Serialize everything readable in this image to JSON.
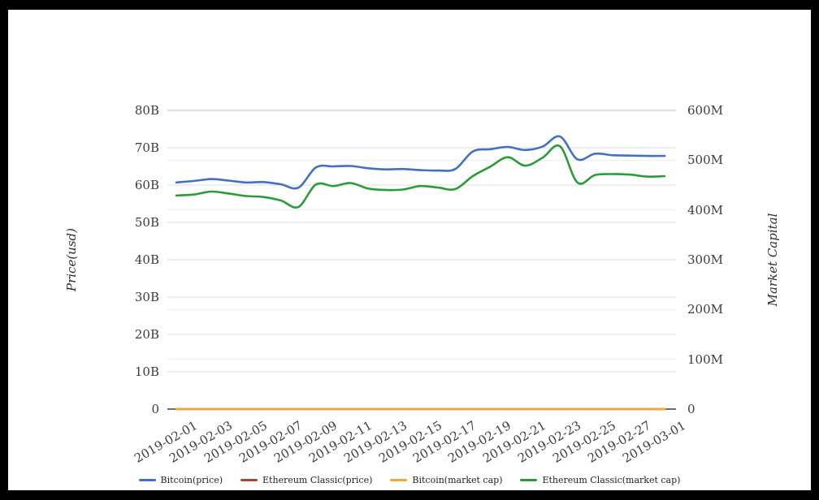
{
  "frame": {
    "background": "#ffffff",
    "border_color": "#000000"
  },
  "chart_data": {
    "type": "line",
    "title": "",
    "grid": true,
    "legend_position": "bottom",
    "x": [
      "2019-02-01",
      "2019-02-02",
      "2019-02-03",
      "2019-02-04",
      "2019-02-05",
      "2019-02-06",
      "2019-02-07",
      "2019-02-08",
      "2019-02-09",
      "2019-02-10",
      "2019-02-11",
      "2019-02-12",
      "2019-02-13",
      "2019-02-14",
      "2019-02-15",
      "2019-02-16",
      "2019-02-17",
      "2019-02-18",
      "2019-02-19",
      "2019-02-20",
      "2019-02-21",
      "2019-02-22",
      "2019-02-23",
      "2019-02-24",
      "2019-02-25",
      "2019-02-26",
      "2019-02-27",
      "2019-02-28",
      "2019-03-01"
    ],
    "x_tick_labels": [
      "2019-02-01",
      "2019-02-03",
      "2019-02-05",
      "2019-02-07",
      "2019-02-09",
      "2019-02-11",
      "2019-02-13",
      "2019-02-15",
      "2019-02-17",
      "2019-02-19",
      "2019-02-21",
      "2019-02-23",
      "2019-02-25",
      "2019-02-27",
      "2019-03-01"
    ],
    "y_axis_left": {
      "title": "Price(usd)",
      "ticks": [
        "0",
        "10B",
        "20B",
        "30B",
        "40B",
        "50B",
        "60B",
        "70B",
        "80B"
      ],
      "min": 0,
      "max": 80,
      "unit": "B (billions USD)"
    },
    "y_axis_right": {
      "title": "Market Capital",
      "ticks": [
        "0",
        "100M",
        "200M",
        "300M",
        "400M",
        "500M",
        "600M"
      ],
      "min": 0,
      "max": 600,
      "unit": "M (millions USD)"
    },
    "series": [
      {
        "name": "Bitcoin(price)",
        "color": "#4170c4",
        "axis": "left",
        "unit": "B",
        "values": [
          60.7,
          61.1,
          61.6,
          61.2,
          60.7,
          60.8,
          60.2,
          59.3,
          64.7,
          65.0,
          65.1,
          64.5,
          64.2,
          64.3,
          64.0,
          63.9,
          64.3,
          69.0,
          69.6,
          70.2,
          69.4,
          70.3,
          73.0,
          66.9,
          68.4,
          68.0,
          67.9,
          67.8,
          67.8
        ]
      },
      {
        "name": "Ethereum Classic(price)",
        "color": "#a9452b",
        "axis": "left",
        "unit": "B",
        "note": "flat at ~0 on this scale (hidden under the yellow line)",
        "values": [
          0,
          0,
          0,
          0,
          0,
          0,
          0,
          0,
          0,
          0,
          0,
          0,
          0,
          0,
          0,
          0,
          0,
          0,
          0,
          0,
          0,
          0,
          0,
          0,
          0,
          0,
          0,
          0,
          0
        ]
      },
      {
        "name": "Bitcoin(market cap)",
        "color": "#f2a72e",
        "axis": "left",
        "unit": "B",
        "note": "flat at ~0 on this scale, drawn along the baseline",
        "values": [
          0,
          0,
          0,
          0,
          0,
          0,
          0,
          0,
          0,
          0,
          0,
          0,
          0,
          0,
          0,
          0,
          0,
          0,
          0,
          0,
          0,
          0,
          0,
          0,
          0,
          0,
          0,
          0,
          0
        ]
      },
      {
        "name": "Ethereum Classic(market cap)",
        "color": "#2d9c38",
        "axis": "right",
        "unit": "M",
        "values": [
          429,
          431,
          437,
          433,
          428,
          426,
          419,
          406,
          451,
          448,
          454,
          443,
          440,
          441,
          448,
          445,
          442,
          468,
          487,
          506,
          489,
          505,
          528,
          455,
          470,
          472,
          471,
          467,
          468
        ]
      }
    ],
    "legend": [
      {
        "label": "Bitcoin(price)",
        "color": "#4170c4"
      },
      {
        "label": "Ethereum Classic(price)",
        "color": "#a9452b"
      },
      {
        "label": "Bitcoin(market cap)",
        "color": "#f2a72e"
      },
      {
        "label": "Ethereum Classic(market cap)",
        "color": "#2d9c38"
      }
    ]
  }
}
